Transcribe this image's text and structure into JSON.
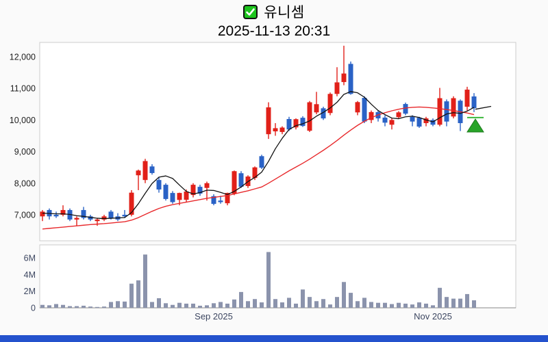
{
  "header": {
    "badge_icon": "check-badge-icon",
    "badge_color": "#1ec41e",
    "title": "유니셈",
    "subtitle": "2025-11-13 20:31"
  },
  "colors": {
    "up": "#e12019",
    "down": "#2a62c6",
    "ma_fast": "#111111",
    "ma_slow": "#e8282b",
    "volume_bar": "#8b93ac",
    "signal_green": "#28a428",
    "signal_line_green": "#3cb83c",
    "panel_border": "#cccccc",
    "axis_line": "#888888",
    "price_label": "#1d1d1d",
    "time_label": "#3c4660",
    "plot_bg": "#ffffff",
    "page_bg": "#fafafa",
    "bottom_bar": "#2452cd"
  },
  "chart_data": {
    "type": "candlestick_with_volume",
    "title": "유니셈",
    "timestamp": "2025-11-13 20:31",
    "price_axis": {
      "ticks": [
        12000,
        11000,
        10000,
        9000,
        8000,
        7000
      ],
      "tick_labels": [
        "12,000",
        "11,000",
        "10,000",
        "9,000",
        "8,000",
        "7,000"
      ],
      "visible_range": [
        6200,
        12450
      ],
      "grid": false
    },
    "volume_axis": {
      "ticks": [
        6,
        4,
        2,
        0
      ],
      "tick_labels": [
        "6M",
        "4M",
        "2M",
        "0"
      ],
      "unit": "millions of shares"
    },
    "x_axis_labels": [
      {
        "label": "Sep 2025",
        "candle_index": 25
      },
      {
        "label": "Nov 2025",
        "candle_index": 57
      }
    ],
    "candle_columns": [
      "open",
      "high",
      "low",
      "close",
      "volume_millions"
    ],
    "candles": [
      [
        6950,
        7150,
        6800,
        7100,
        0.35
      ],
      [
        7150,
        7200,
        6850,
        6950,
        0.3
      ],
      [
        7000,
        7100,
        6900,
        6950,
        0.45
      ],
      [
        7000,
        7300,
        6950,
        7150,
        0.35
      ],
      [
        7150,
        7200,
        6800,
        6850,
        0.2
      ],
      [
        6850,
        6950,
        6650,
        6900,
        0.2
      ],
      [
        7150,
        7250,
        6850,
        6900,
        0.25
      ],
      [
        6950,
        7000,
        6800,
        6850,
        0.15
      ],
      [
        6800,
        6900,
        6650,
        6850,
        0.1
      ],
      [
        6850,
        7000,
        6800,
        6950,
        0.15
      ],
      [
        7100,
        7150,
        6850,
        6900,
        0.7
      ],
      [
        6950,
        7050,
        6800,
        6850,
        0.8
      ],
      [
        7000,
        7150,
        6900,
        6950,
        0.75
      ],
      [
        7000,
        7780,
        6950,
        7700,
        2.9
      ],
      [
        8250,
        8430,
        7780,
        8400,
        3.3
      ],
      [
        8100,
        8770,
        8000,
        8700,
        6.4
      ],
      [
        8530,
        8600,
        8270,
        8320,
        0.7
      ],
      [
        8100,
        8200,
        7700,
        7800,
        1.15
      ],
      [
        7950,
        8000,
        7450,
        7500,
        0.55
      ],
      [
        7690,
        7750,
        7350,
        7400,
        0.35
      ],
      [
        7470,
        7700,
        7300,
        7690,
        0.6
      ],
      [
        7475,
        7800,
        7400,
        7735,
        0.5
      ],
      [
        7625,
        8000,
        7550,
        7950,
        0.5
      ],
      [
        7885,
        7950,
        7600,
        7670,
        0.25
      ],
      [
        7850,
        8050,
        7450,
        8000,
        0.3
      ],
      [
        7590,
        7650,
        7300,
        7345,
        0.55
      ],
      [
        7450,
        7600,
        7350,
        7400,
        0.7
      ],
      [
        7365,
        7700,
        7300,
        7690,
        0.5
      ],
      [
        7670,
        8400,
        7620,
        8380,
        1.0
      ],
      [
        8315,
        8380,
        7850,
        7885,
        1.9
      ],
      [
        7910,
        8250,
        7850,
        8210,
        0.8
      ],
      [
        8165,
        8530,
        8100,
        8500,
        1.05
      ],
      [
        8855,
        8900,
        8450,
        8490,
        0.65
      ],
      [
        9550,
        10560,
        9400,
        10400,
        6.7
      ],
      [
        9640,
        9900,
        9500,
        9740,
        1.05
      ],
      [
        9620,
        9800,
        9550,
        9760,
        0.65
      ],
      [
        10030,
        10100,
        9650,
        9700,
        1.2
      ],
      [
        9765,
        10050,
        9700,
        10025,
        0.5
      ],
      [
        10070,
        10120,
        9780,
        9810,
        2.2
      ],
      [
        9660,
        10600,
        9620,
        10560,
        1.3
      ],
      [
        10240,
        10890,
        10180,
        10500,
        0.8
      ],
      [
        10370,
        10420,
        10000,
        10050,
        1.05
      ],
      [
        10220,
        10870,
        10150,
        10825,
        0.4
      ],
      [
        10825,
        11670,
        10750,
        11190,
        1.3
      ],
      [
        11200,
        12350,
        11100,
        11470,
        3.1
      ],
      [
        11775,
        11850,
        10800,
        10825,
        1.8
      ],
      [
        10240,
        10600,
        10150,
        10565,
        0.8
      ],
      [
        10700,
        10750,
        9900,
        9950,
        1.2
      ],
      [
        10000,
        10300,
        9900,
        10250,
        0.7
      ],
      [
        10250,
        10300,
        9950,
        10050,
        0.6
      ],
      [
        10075,
        10150,
        9800,
        9915,
        0.6
      ],
      [
        9850,
        10050,
        9700,
        10000,
        0.45
      ],
      [
        10090,
        10280,
        10050,
        10240,
        0.6
      ],
      [
        10505,
        10550,
        10150,
        10200,
        0.5
      ],
      [
        10100,
        10150,
        9800,
        9950,
        0.4
      ],
      [
        10070,
        10100,
        9750,
        9790,
        0.65
      ],
      [
        9900,
        10100,
        9800,
        10050,
        0.5
      ],
      [
        10000,
        10050,
        9800,
        9850,
        0.3
      ],
      [
        9850,
        11015,
        9800,
        10690,
        2.4
      ],
      [
        10590,
        10650,
        9800,
        9950,
        1.3
      ],
      [
        10110,
        10750,
        10050,
        10690,
        1.1
      ],
      [
        10610,
        10650,
        9650,
        9900,
        1.1
      ],
      [
        10420,
        11050,
        10300,
        10960,
        1.65
      ],
      [
        10745,
        10850,
        10250,
        10375,
        0.9
      ]
    ],
    "ma_fast_values": [
      7050,
      7040,
      7030,
      7030,
      7010,
      6970,
      6950,
      6920,
      6890,
      6880,
      6890,
      6900,
      6910,
      7070,
      7350,
      7680,
      7990,
      8190,
      8230,
      8150,
      7940,
      7740,
      7660,
      7700,
      7780,
      7770,
      7710,
      7640,
      7740,
      7880,
      8050,
      8180,
      8350,
      8690,
      9090,
      9420,
      9700,
      9820,
      9880,
      9970,
      10120,
      10240,
      10380,
      10560,
      10810,
      10900,
      10860,
      10720,
      10500,
      10300,
      10170,
      10060,
      10040,
      10100,
      10120,
      10080,
      10000,
      9940,
      10070,
      10190,
      10230,
      10210,
      10280,
      10400
    ],
    "ma_slow_values": [
      6550,
      6570,
      6590,
      6610,
      6630,
      6650,
      6670,
      6690,
      6705,
      6720,
      6740,
      6760,
      6780,
      6830,
      6910,
      7010,
      7110,
      7200,
      7270,
      7320,
      7360,
      7400,
      7440,
      7480,
      7520,
      7550,
      7580,
      7610,
      7660,
      7710,
      7760,
      7820,
      7880,
      8000,
      8130,
      8260,
      8390,
      8510,
      8630,
      8760,
      8900,
      9040,
      9190,
      9350,
      9520,
      9680,
      9830,
      9960,
      10070,
      10160,
      10230,
      10290,
      10340,
      10380,
      10400,
      10410,
      10400,
      10380,
      10360,
      10330,
      10300,
      10260,
      10220,
      10170
    ],
    "last_price_line": {
      "from_price": 10340,
      "to_price": 10430
    },
    "signal_marker": {
      "shape": "triangle-up",
      "meaning": "buy-signal",
      "line_price": 10075,
      "apex_price": 10030,
      "base_price": 9620,
      "candle_index": 63.4
    },
    "legend": []
  }
}
